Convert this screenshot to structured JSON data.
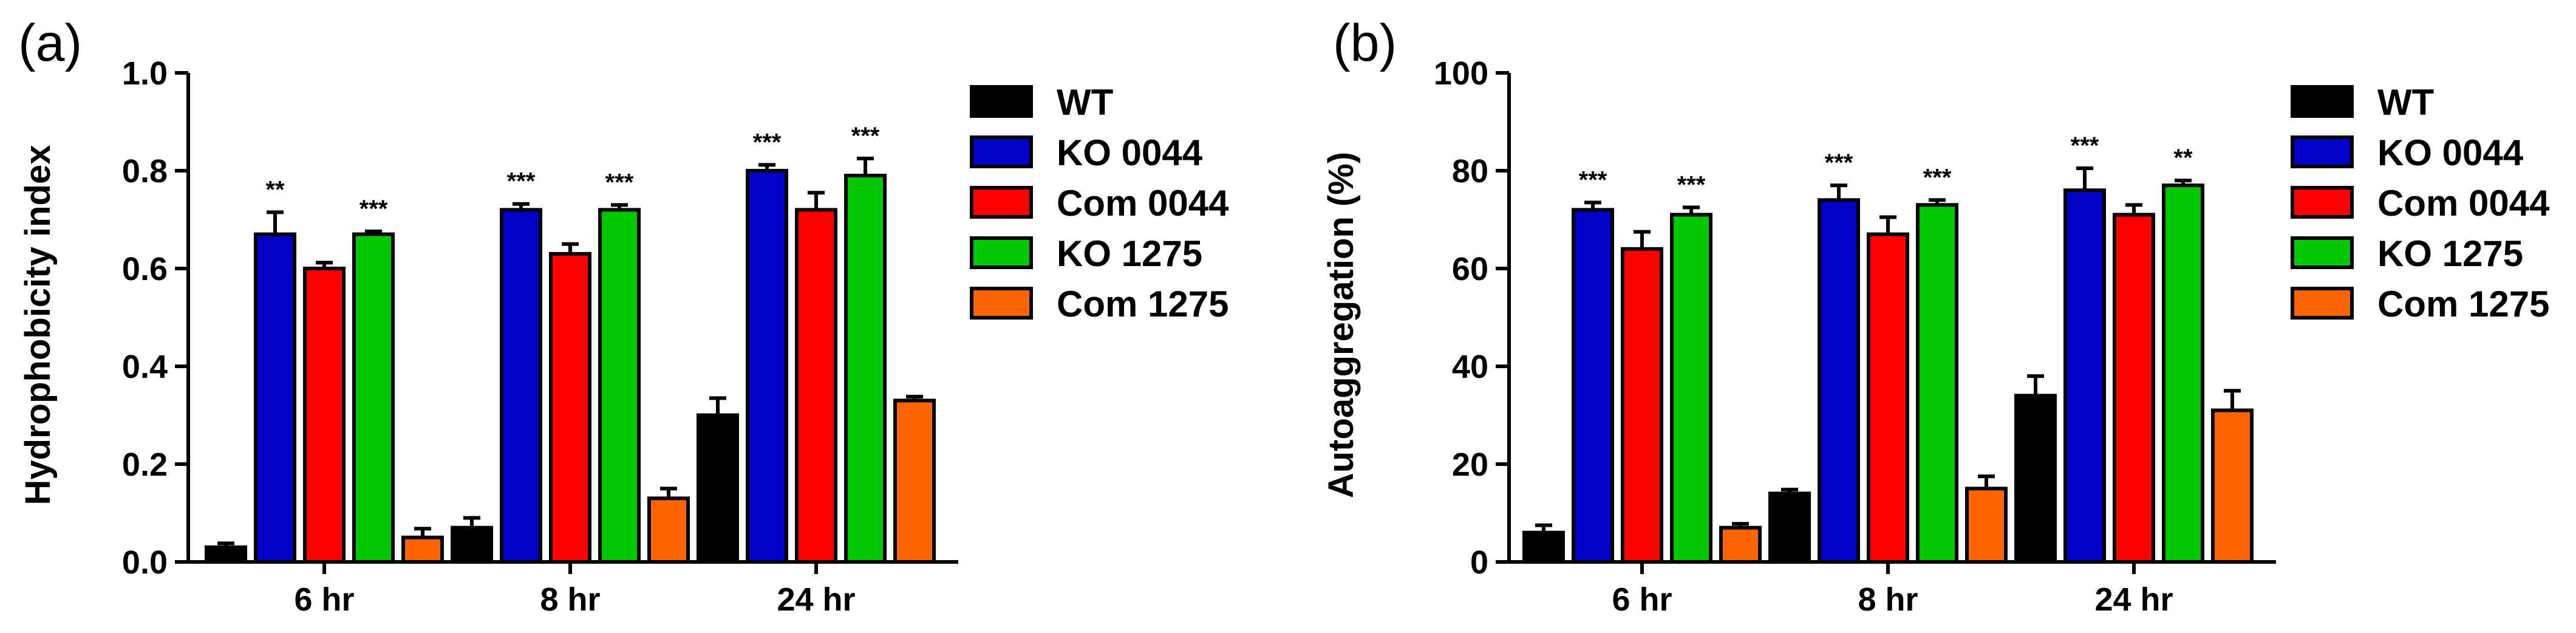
{
  "colors": {
    "WT": "#000000",
    "KO 0044": "#0000c8",
    "Com 0044": "#ff0000",
    "KO 1275": "#00c800",
    "Com 1275": "#ff6400"
  },
  "chart_data": [
    {
      "panel": "(a)",
      "type": "bar",
      "ylabel": "Hydrophobicity index",
      "ylim": [
        0,
        1.0
      ],
      "yticks": [
        "0.0",
        "0.2",
        "0.4",
        "0.6",
        "0.8",
        "1.0"
      ],
      "categories": [
        "6 hr",
        "8 hr",
        "24 hr"
      ],
      "series": [
        {
          "name": "WT",
          "values": [
            0.03,
            0.07,
            0.3
          ],
          "errors": [
            0.008,
            0.02,
            0.035
          ]
        },
        {
          "name": "KO 0044",
          "values": [
            0.67,
            0.72,
            0.8
          ],
          "errors": [
            0.045,
            0.012,
            0.012
          ]
        },
        {
          "name": "Com 0044",
          "values": [
            0.6,
            0.63,
            0.72
          ],
          "errors": [
            0.012,
            0.02,
            0.035
          ]
        },
        {
          "name": "KO 1275",
          "values": [
            0.67,
            0.72,
            0.79
          ],
          "errors": [
            0.006,
            0.01,
            0.035
          ]
        },
        {
          "name": "Com 1275",
          "values": [
            0.05,
            0.13,
            0.33
          ],
          "errors": [
            0.018,
            0.02,
            0.008
          ]
        }
      ],
      "annotations": [
        {
          "category": "6 hr",
          "series": "KO 0044",
          "text": "**"
        },
        {
          "category": "6 hr",
          "series": "KO 1275",
          "text": "***"
        },
        {
          "category": "8 hr",
          "series": "KO 0044",
          "text": "***"
        },
        {
          "category": "8 hr",
          "series": "KO 1275",
          "text": "***"
        },
        {
          "category": "24 hr",
          "series": "KO 0044",
          "text": "***"
        },
        {
          "category": "24 hr",
          "series": "KO 1275",
          "text": "***"
        }
      ],
      "legend": [
        "WT",
        "KO 0044",
        "Com 0044",
        "KO 1275",
        "Com 1275"
      ]
    },
    {
      "panel": "(b)",
      "type": "bar",
      "ylabel": "Autoaggregation (%)",
      "ylim": [
        0,
        100
      ],
      "yticks": [
        "0",
        "20",
        "40",
        "60",
        "80",
        "100"
      ],
      "categories": [
        "6 hr",
        "8 hr",
        "24 hr"
      ],
      "series": [
        {
          "name": "WT",
          "values": [
            6,
            14,
            34
          ],
          "errors": [
            1.5,
            0.8,
            4
          ]
        },
        {
          "name": "KO 0044",
          "values": [
            72,
            74,
            76
          ],
          "errors": [
            1.5,
            3,
            4.5
          ]
        },
        {
          "name": "Com 0044",
          "values": [
            64,
            67,
            71
          ],
          "errors": [
            3.5,
            3.5,
            2
          ]
        },
        {
          "name": "KO 1275",
          "values": [
            71,
            73,
            77
          ],
          "errors": [
            1.5,
            1,
            1
          ]
        },
        {
          "name": "Com 1275",
          "values": [
            7,
            15,
            31
          ],
          "errors": [
            0.8,
            2.5,
            4
          ]
        }
      ],
      "annotations": [
        {
          "category": "6 hr",
          "series": "KO 0044",
          "text": "***"
        },
        {
          "category": "6 hr",
          "series": "KO 1275",
          "text": "***"
        },
        {
          "category": "8 hr",
          "series": "KO 0044",
          "text": "***"
        },
        {
          "category": "8 hr",
          "series": "KO 1275",
          "text": "***"
        },
        {
          "category": "24 hr",
          "series": "KO 0044",
          "text": "***"
        },
        {
          "category": "24 hr",
          "series": "KO 1275",
          "text": "**"
        }
      ],
      "legend": [
        "WT",
        "KO 0044",
        "Com 0044",
        "KO 1275",
        "Com 1275"
      ]
    }
  ]
}
